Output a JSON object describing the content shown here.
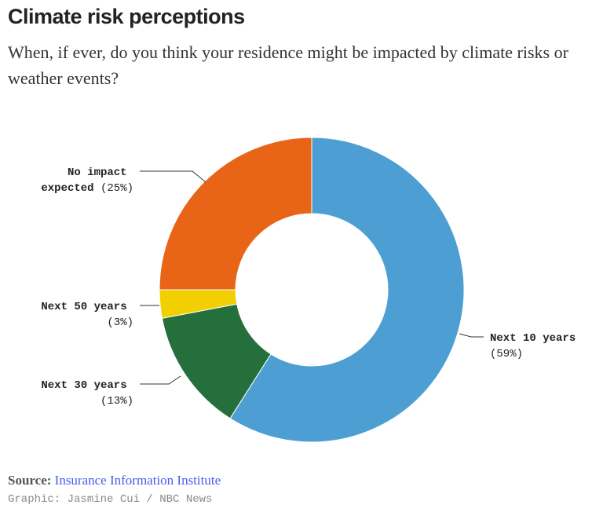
{
  "title": "Climate risk perceptions",
  "subtitle": "When, if ever, do you think your residence might be impacted by climate risks or weather events?",
  "chart_data": {
    "type": "pie",
    "variant": "donut",
    "title": "Climate risk perceptions",
    "slices": [
      {
        "label_lines": [
          "Next 10 years"
        ],
        "pct_text": "(59%)",
        "value": 59,
        "color": "#4d9fd3"
      },
      {
        "label_lines": [
          "Next 30 years"
        ],
        "pct_text": "(13%)",
        "value": 13,
        "color": "#256f3d"
      },
      {
        "label_lines": [
          "Next 50 years"
        ],
        "pct_text": "(3%)",
        "value": 3,
        "color": "#f2cf00"
      },
      {
        "label_lines": [
          "No impact",
          "expected"
        ],
        "pct_text": "(25%)",
        "value": 25,
        "color": "#e86417"
      }
    ]
  },
  "footer": {
    "source_label": "Source:",
    "source_link": "Insurance Information Institute",
    "credit": "Graphic: Jasmine Cui / NBC News"
  }
}
